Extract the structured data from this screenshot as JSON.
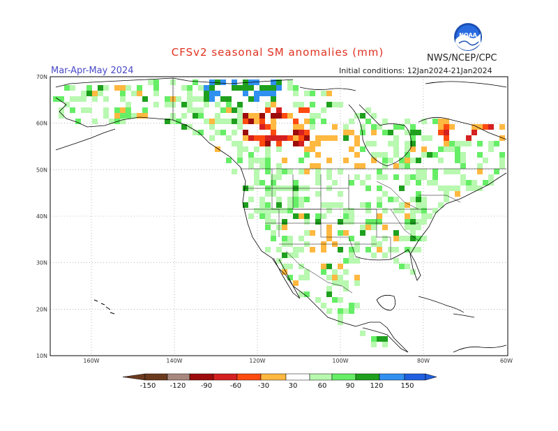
{
  "header": {
    "title": "CFSv2 seasonal SM anomalies (mm)",
    "season": "Mar-Apr-May 2024",
    "initial_conditions": "Initial conditions: 12Jan2024-21Jan2024",
    "organization": "NWS/NCEP/CPC",
    "logo_text": "NOAA"
  },
  "axes": {
    "lat_labels": [
      "70N",
      "60N",
      "50N",
      "40N",
      "30N",
      "20N",
      "10N"
    ],
    "lon_labels": [
      "160W",
      "140W",
      "120W",
      "100W",
      "80W",
      "60W"
    ]
  },
  "colorbar": {
    "labels": [
      "-150",
      "-120",
      "-90",
      "-60",
      "-30",
      "30",
      "60",
      "90",
      "120",
      "150"
    ],
    "colors": [
      "#6b3a1e",
      "#a8887e",
      "#9c0c0c",
      "#d42020",
      "#ff4a10",
      "#ffb840",
      "#ffffff",
      "#b8f8b0",
      "#66ee66",
      "#1ea01e",
      "#3090f0",
      "#2060e0"
    ]
  },
  "colors": {
    "land": "#ffffff",
    "border": "#000000",
    "grid": "#888888"
  }
}
